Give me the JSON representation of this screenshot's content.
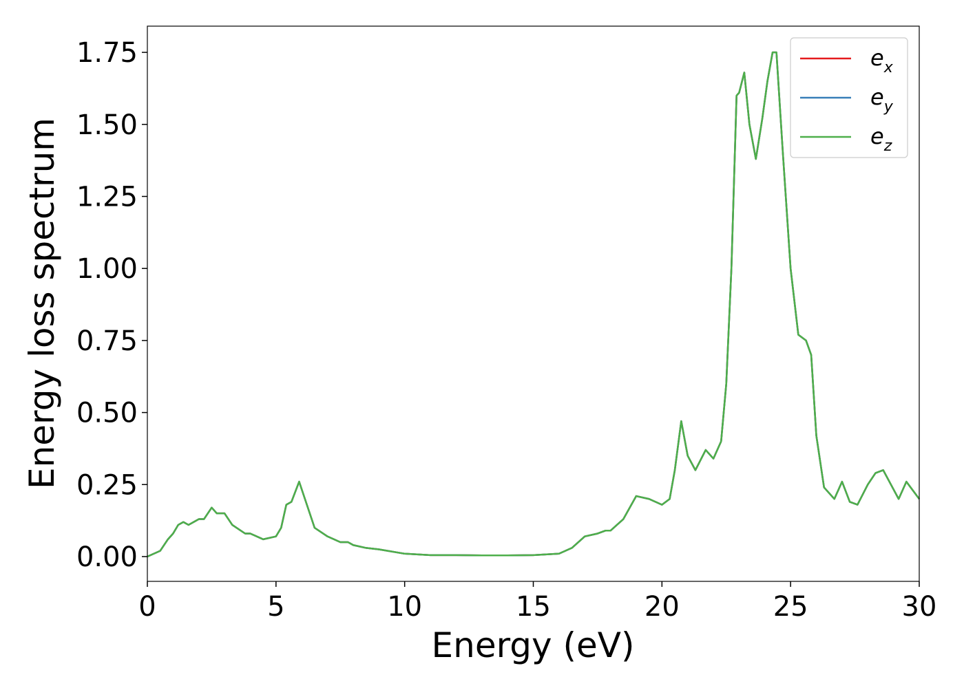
{
  "chart_data": {
    "type": "line",
    "xlabel": "Energy (eV)",
    "ylabel": "Energy loss spectrum",
    "x": [
      0,
      0.5,
      0.8,
      1.0,
      1.2,
      1.4,
      1.6,
      1.8,
      2.0,
      2.2,
      2.5,
      2.7,
      3.0,
      3.3,
      3.8,
      4.0,
      4.5,
      5.0,
      5.2,
      5.4,
      5.6,
      5.9,
      6.2,
      6.5,
      7.0,
      7.5,
      7.8,
      8.0,
      8.5,
      9.0,
      10,
      11,
      12,
      13,
      14,
      15,
      16,
      16.5,
      17,
      17.5,
      17.8,
      18,
      18.5,
      19,
      19.5,
      20,
      20.3,
      20.5,
      20.75,
      21,
      21.3,
      21.7,
      22,
      22.3,
      22.5,
      22.7,
      22.9,
      23.0,
      23.2,
      23.4,
      23.65,
      23.9,
      24.1,
      24.3,
      24.45,
      24.7,
      25.0,
      25.3,
      25.6,
      25.8,
      26.0,
      26.3,
      26.7,
      27.0,
      27.3,
      27.6,
      28.0,
      28.3,
      28.6,
      28.9,
      29.2,
      29.5,
      30.0
    ],
    "series": [
      {
        "name": "ex",
        "color": "#e41a1c",
        "values": [
          0,
          0.02,
          0.06,
          0.08,
          0.11,
          0.12,
          0.11,
          0.12,
          0.13,
          0.13,
          0.17,
          0.15,
          0.15,
          0.11,
          0.08,
          0.08,
          0.06,
          0.07,
          0.1,
          0.18,
          0.19,
          0.26,
          0.18,
          0.1,
          0.07,
          0.05,
          0.05,
          0.04,
          0.03,
          0.025,
          0.01,
          0.005,
          0.005,
          0.004,
          0.004,
          0.005,
          0.01,
          0.03,
          0.07,
          0.08,
          0.09,
          0.09,
          0.13,
          0.21,
          0.2,
          0.18,
          0.2,
          0.3,
          0.47,
          0.35,
          0.3,
          0.37,
          0.34,
          0.4,
          0.6,
          1.0,
          1.6,
          1.61,
          1.68,
          1.5,
          1.38,
          1.52,
          1.65,
          1.75,
          1.75,
          1.4,
          1.0,
          0.77,
          0.75,
          0.7,
          0.42,
          0.24,
          0.2,
          0.26,
          0.19,
          0.18,
          0.25,
          0.29,
          0.3,
          0.25,
          0.2,
          0.26,
          0.2
        ]
      },
      {
        "name": "ey",
        "color": "#377eb8",
        "values": [
          0,
          0.02,
          0.06,
          0.08,
          0.11,
          0.12,
          0.11,
          0.12,
          0.13,
          0.13,
          0.17,
          0.15,
          0.15,
          0.11,
          0.08,
          0.08,
          0.06,
          0.07,
          0.1,
          0.18,
          0.19,
          0.26,
          0.18,
          0.1,
          0.07,
          0.05,
          0.05,
          0.04,
          0.03,
          0.025,
          0.01,
          0.005,
          0.005,
          0.004,
          0.004,
          0.005,
          0.01,
          0.03,
          0.07,
          0.08,
          0.09,
          0.09,
          0.13,
          0.21,
          0.2,
          0.18,
          0.2,
          0.3,
          0.47,
          0.35,
          0.3,
          0.37,
          0.34,
          0.4,
          0.6,
          1.0,
          1.6,
          1.61,
          1.68,
          1.5,
          1.38,
          1.52,
          1.65,
          1.75,
          1.75,
          1.4,
          1.0,
          0.77,
          0.75,
          0.7,
          0.42,
          0.24,
          0.2,
          0.26,
          0.19,
          0.18,
          0.25,
          0.29,
          0.3,
          0.25,
          0.2,
          0.26,
          0.2
        ]
      },
      {
        "name": "ez",
        "color": "#4daf4a",
        "values": [
          0,
          0.02,
          0.06,
          0.08,
          0.11,
          0.12,
          0.11,
          0.12,
          0.13,
          0.13,
          0.17,
          0.15,
          0.15,
          0.11,
          0.08,
          0.08,
          0.06,
          0.07,
          0.1,
          0.18,
          0.19,
          0.26,
          0.18,
          0.1,
          0.07,
          0.05,
          0.05,
          0.04,
          0.03,
          0.025,
          0.01,
          0.005,
          0.005,
          0.004,
          0.004,
          0.005,
          0.01,
          0.03,
          0.07,
          0.08,
          0.09,
          0.09,
          0.13,
          0.21,
          0.2,
          0.18,
          0.2,
          0.3,
          0.47,
          0.35,
          0.3,
          0.37,
          0.34,
          0.4,
          0.6,
          1.0,
          1.6,
          1.61,
          1.68,
          1.5,
          1.38,
          1.52,
          1.65,
          1.75,
          1.75,
          1.4,
          1.0,
          0.77,
          0.75,
          0.7,
          0.42,
          0.24,
          0.2,
          0.26,
          0.19,
          0.18,
          0.25,
          0.29,
          0.3,
          0.25,
          0.2,
          0.26,
          0.2
        ]
      }
    ],
    "xlim": [
      0,
      30
    ],
    "xticks": [
      0,
      5,
      10,
      15,
      20,
      25,
      30
    ],
    "ylim": [
      -0.086,
      1.841
    ],
    "yticks": [
      {
        "value": 0,
        "label": "0.00"
      },
      {
        "value": 0.25,
        "label": "0.25"
      },
      {
        "value": 0.5,
        "label": "0.50"
      },
      {
        "value": 0.75,
        "label": "0.75"
      },
      {
        "value": 1.0,
        "label": "1.00"
      },
      {
        "value": 1.25,
        "label": "1.25"
      },
      {
        "value": 1.5,
        "label": "1.50"
      },
      {
        "value": 1.75,
        "label": "1.75"
      }
    ],
    "legend": "upper right",
    "grid": false
  }
}
